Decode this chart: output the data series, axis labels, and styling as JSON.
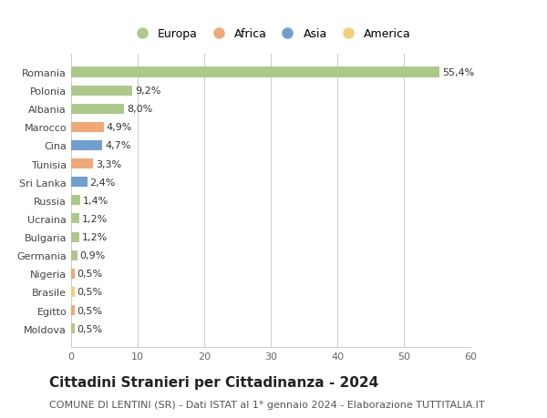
{
  "categories": [
    "Moldova",
    "Egitto",
    "Brasile",
    "Nigeria",
    "Germania",
    "Bulgaria",
    "Ucraina",
    "Russia",
    "Sri Lanka",
    "Tunisia",
    "Cina",
    "Marocco",
    "Albania",
    "Polonia",
    "Romania"
  ],
  "values": [
    0.5,
    0.5,
    0.5,
    0.5,
    0.9,
    1.2,
    1.2,
    1.4,
    2.4,
    3.3,
    4.7,
    4.9,
    8.0,
    9.2,
    55.4
  ],
  "labels": [
    "0,5%",
    "0,5%",
    "0,5%",
    "0,5%",
    "0,9%",
    "1,2%",
    "1,2%",
    "1,4%",
    "2,4%",
    "3,3%",
    "4,7%",
    "4,9%",
    "8,0%",
    "9,2%",
    "55,4%"
  ],
  "continents": [
    "Europa",
    "Africa",
    "America",
    "Africa",
    "Europa",
    "Europa",
    "Europa",
    "Europa",
    "Asia",
    "Africa",
    "Asia",
    "Africa",
    "Europa",
    "Europa",
    "Europa"
  ],
  "continent_colors": {
    "Europa": "#adc98a",
    "Africa": "#f0a877",
    "Asia": "#6f9fcf",
    "America": "#f5d07a"
  },
  "legend_order": [
    "Europa",
    "Africa",
    "Asia",
    "America"
  ],
  "xlim": [
    0,
    60
  ],
  "xticks": [
    0,
    10,
    20,
    30,
    40,
    50,
    60
  ],
  "title": "Cittadini Stranieri per Cittadinanza - 2024",
  "subtitle": "COMUNE DI LENTINI (SR) - Dati ISTAT al 1° gennaio 2024 - Elaborazione TUTTITALIA.IT",
  "title_fontsize": 11,
  "subtitle_fontsize": 8,
  "label_fontsize": 8,
  "tick_fontsize": 8,
  "legend_fontsize": 9,
  "background_color": "#ffffff",
  "grid_color": "#cccccc",
  "bar_height": 0.55
}
